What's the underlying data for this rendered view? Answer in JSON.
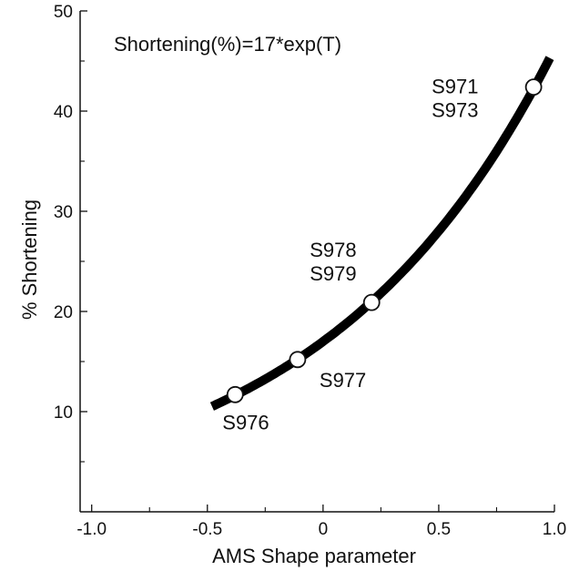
{
  "chart_data": {
    "type": "line",
    "title": "",
    "annotation": "Shortening(%)=17*exp(T)",
    "xlabel": "AMS Shape parameter",
    "ylabel": "% Shortening",
    "xlim": [
      -1.05,
      1.0
    ],
    "ylim": [
      0,
      50
    ],
    "xticks": [
      {
        "value": -1.0,
        "label": "-1.0"
      },
      {
        "value": -0.5,
        "label": "-0.5"
      },
      {
        "value": 0.0,
        "label": "0"
      },
      {
        "value": 0.5,
        "label": "0.5"
      },
      {
        "value": 1.0,
        "label": "1.0"
      }
    ],
    "yticks": [
      {
        "value": 10,
        "label": "10"
      },
      {
        "value": 20,
        "label": "20"
      },
      {
        "value": 30,
        "label": "30"
      },
      {
        "value": 40,
        "label": "40"
      },
      {
        "value": 50,
        "label": "50"
      }
    ],
    "grid": false,
    "series": [
      {
        "function": "17*exp(T)",
        "x_range": [
          -0.48,
          0.98
        ],
        "color": "#000000"
      }
    ],
    "points": [
      {
        "x": -0.38,
        "y": 11.7,
        "labels": [
          "S976"
        ],
        "label_pos": "below"
      },
      {
        "x": -0.11,
        "y": 15.2,
        "labels": [
          "S977"
        ],
        "label_pos": "below-right"
      },
      {
        "x": 0.21,
        "y": 20.9,
        "labels": [
          "S978",
          "S979"
        ],
        "label_pos": "above-left"
      },
      {
        "x": 0.91,
        "y": 42.4,
        "labels": [
          "S971",
          "S973"
        ],
        "label_pos": "left"
      }
    ]
  }
}
